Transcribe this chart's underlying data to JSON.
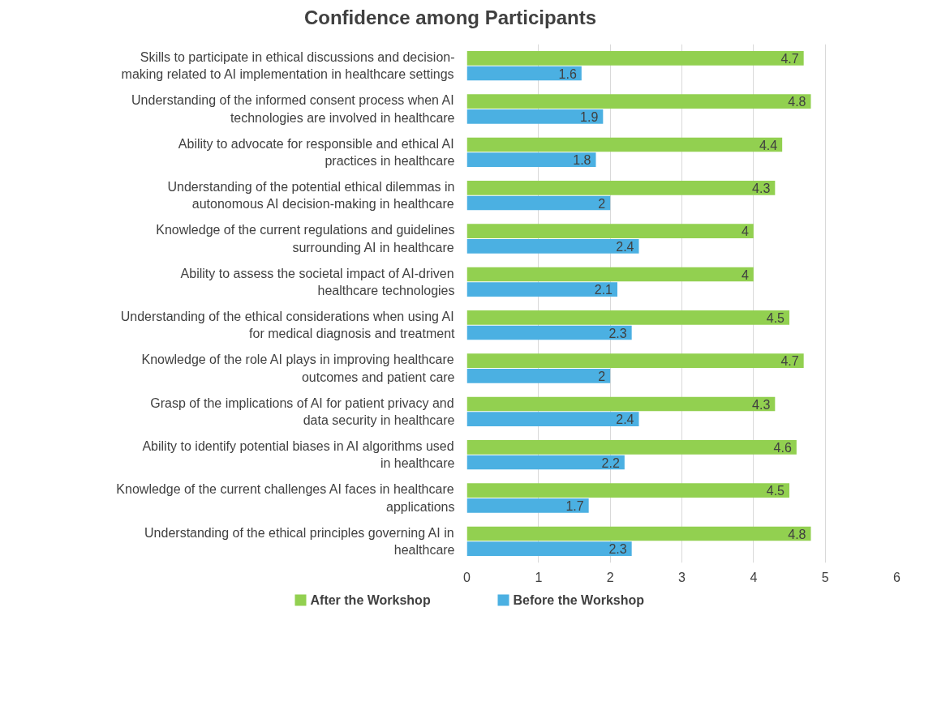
{
  "chart_data": {
    "type": "bar",
    "orientation": "horizontal",
    "title": "Confidence among Participants",
    "categories": [
      "Skills to participate in ethical discussions and decision-making related to AI implementation in healthcare settings",
      "Understanding of the informed consent process when AI technologies are involved in healthcare",
      "Ability to advocate for responsible and ethical AI practices in healthcare",
      "Understanding of the potential ethical dilemmas in autonomous AI decision-making in healthcare",
      "Knowledge of the current regulations and guidelines surrounding AI in healthcare",
      "Ability to assess the societal impact of AI-driven healthcare technologies",
      "Understanding of the ethical considerations when using AI for medical diagnosis and treatment",
      "Knowledge of the role AI plays in improving healthcare outcomes and patient care",
      "Grasp of the implications of AI for patient privacy and data security in healthcare",
      "Ability to identify potential biases in AI algorithms used in healthcare",
      "Knowledge of the current challenges AI faces in healthcare applications",
      "Understanding of the ethical principles governing AI in healthcare"
    ],
    "series": [
      {
        "name": "After the Workshop",
        "color": "#92d050",
        "values": [
          4.7,
          4.8,
          4.4,
          4.3,
          4,
          4,
          4.5,
          4.7,
          4.3,
          4.6,
          4.5,
          4.8
        ]
      },
      {
        "name": "Before the Workshop",
        "color": "#4bb0e2",
        "values": [
          1.6,
          1.9,
          1.8,
          2,
          2.4,
          2.1,
          2.3,
          2,
          2.4,
          2.2,
          1.7,
          2.3
        ]
      }
    ],
    "xlim": [
      0,
      6
    ],
    "xticks": [
      0,
      1,
      2,
      3,
      4,
      5,
      6
    ],
    "grid": "x",
    "legend": "bottom",
    "data_labels": true
  }
}
